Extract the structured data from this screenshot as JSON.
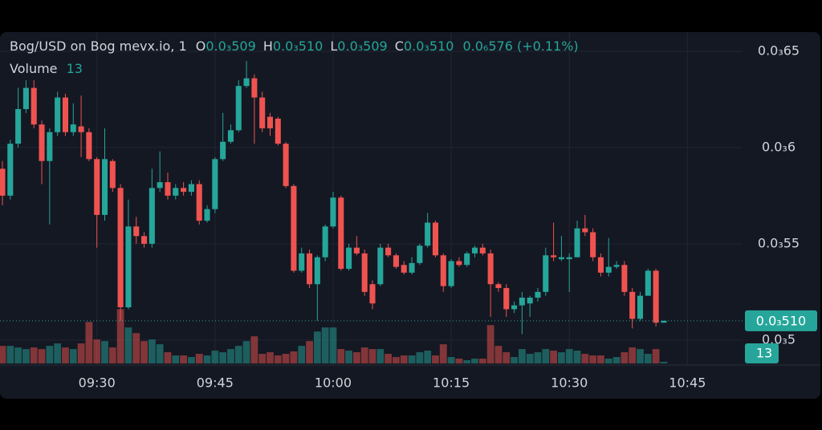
{
  "chart_data": {
    "type": "candlestick",
    "legend": {
      "title": "Bog/USD on Bog mevx.io, 1",
      "keys": [
        "O",
        "H",
        "L",
        "C"
      ],
      "labels": [
        "0.0₃509",
        "0.0₃510",
        "0.0₃509",
        "0.0₃510"
      ],
      "change": "0.0₆576 (+0.11%)"
    },
    "x": [
      "09:18",
      "09:19",
      "09:20",
      "09:21",
      "09:22",
      "09:23",
      "09:24",
      "09:25",
      "09:26",
      "09:27",
      "09:28",
      "09:29",
      "09:30",
      "09:31",
      "09:32",
      "09:33",
      "09:34",
      "09:35",
      "09:36",
      "09:37",
      "09:38",
      "09:39",
      "09:40",
      "09:41",
      "09:42",
      "09:43",
      "09:44",
      "09:45",
      "09:46",
      "09:47",
      "09:48",
      "09:49",
      "09:50",
      "09:51",
      "09:52",
      "09:53",
      "09:54",
      "09:55",
      "09:56",
      "09:57",
      "09:58",
      "09:59",
      "10:00",
      "10:01",
      "10:02",
      "10:03",
      "10:04",
      "10:05",
      "10:06",
      "10:07",
      "10:08",
      "10:09",
      "10:10",
      "10:11",
      "10:12",
      "10:13",
      "10:14",
      "10:15",
      "10:16",
      "10:17",
      "10:18",
      "10:19",
      "10:20",
      "10:21",
      "10:22",
      "10:23",
      "10:24",
      "10:25",
      "10:26",
      "10:27",
      "10:28",
      "10:29",
      "10:30",
      "10:31",
      "10:32",
      "10:33",
      "10:34",
      "10:35",
      "10:36",
      "10:37",
      "10:38",
      "10:39",
      "10:40",
      "10:41",
      "10:42"
    ],
    "series": [
      {
        "name": "Bog/USD",
        "up_color": "#26a69a",
        "down_color": "#ef5350",
        "open": [
          0.000589,
          0.000575,
          0.000602,
          0.00062,
          0.000631,
          0.000612,
          0.000593,
          0.000608,
          0.000626,
          0.000608,
          0.000611,
          0.000608,
          0.000594,
          0.000565,
          0.000593,
          0.000579,
          0.000517,
          0.000559,
          0.000554,
          0.00055,
          0.000579,
          0.000582,
          0.000575,
          0.000579,
          0.000577,
          0.000581,
          0.000562,
          0.000568,
          0.000594,
          0.000603,
          0.000609,
          0.000632,
          0.000636,
          0.000626,
          0.000616,
          0.000615,
          0.000602,
          0.00058,
          0.000536,
          0.000545,
          0.000529,
          0.000543,
          0.000559,
          0.000574,
          0.000537,
          0.000548,
          0.000545,
          0.000529,
          0.000529,
          0.000548,
          0.000544,
          0.000539,
          0.000535,
          0.00054,
          0.000549,
          0.000561,
          0.000544,
          0.000528,
          0.000541,
          0.000539,
          0.000545,
          0.000548,
          0.000545,
          0.000529,
          0.000527,
          0.000516,
          0.000518,
          0.000519,
          0.000522,
          0.000525,
          0.000544,
          0.000542,
          0.000542,
          0.000543,
          0.000558,
          0.000556,
          0.000543,
          0.000535,
          0.000538,
          0.000539,
          0.000525,
          0.000511,
          0.000523,
          0.000536,
          0.000509
        ],
        "high": [
          0.000593,
          0.000604,
          0.000631,
          0.000635,
          0.000635,
          0.000614,
          0.00061,
          0.000629,
          0.000628,
          0.000623,
          0.000627,
          0.00061,
          0.000595,
          0.00061,
          0.000594,
          0.000581,
          0.000573,
          0.000564,
          0.000556,
          0.000589,
          0.000598,
          0.000587,
          0.000581,
          0.000582,
          0.000583,
          0.000583,
          0.00057,
          0.000595,
          0.000618,
          0.000612,
          0.000635,
          0.000645,
          0.000638,
          0.000629,
          0.000618,
          0.000616,
          0.000603,
          0.000581,
          0.000548,
          0.000547,
          0.000544,
          0.00056,
          0.000577,
          0.000575,
          0.00055,
          0.000554,
          0.000547,
          0.000531,
          0.00055,
          0.00055,
          0.000545,
          0.000541,
          0.000543,
          0.00055,
          0.000566,
          0.000562,
          0.000545,
          0.000542,
          0.000543,
          0.000546,
          0.000549,
          0.00055,
          0.000547,
          0.00053,
          0.000529,
          0.00052,
          0.000525,
          0.000523,
          0.000527,
          0.000548,
          0.000561,
          0.000554,
          0.000545,
          0.000562,
          0.000565,
          0.000558,
          0.000545,
          0.000553,
          0.000541,
          0.000541,
          0.000527,
          0.000525,
          0.000537,
          0.000537,
          0.00051
        ],
        "low": [
          0.00057,
          0.000573,
          0.0006,
          0.000618,
          0.00061,
          0.000581,
          0.00056,
          0.000606,
          0.000606,
          0.000606,
          0.000595,
          0.000593,
          0.000548,
          0.000562,
          0.000577,
          0.00051,
          0.000516,
          0.00055,
          0.000548,
          0.000548,
          0.000577,
          0.000573,
          0.000573,
          0.000575,
          0.000575,
          0.00056,
          0.000561,
          0.000566,
          0.000593,
          0.000602,
          0.000608,
          0.000631,
          0.000602,
          0.000608,
          0.000606,
          0.000601,
          0.000579,
          0.000535,
          0.000535,
          0.000527,
          0.00051,
          0.000541,
          0.000558,
          0.000536,
          0.000536,
          0.000544,
          0.000523,
          0.000516,
          0.000528,
          0.000543,
          0.000537,
          0.000534,
          0.000534,
          0.000539,
          0.000548,
          0.000543,
          0.000525,
          0.000527,
          0.000538,
          0.000538,
          0.000543,
          0.000544,
          0.000512,
          0.000525,
          0.000512,
          0.000514,
          0.000503,
          0.000512,
          0.00052,
          0.000523,
          0.000541,
          0.000541,
          0.000525,
          0.000543,
          0.000554,
          0.000541,
          0.000533,
          0.000533,
          0.000537,
          0.000523,
          0.000506,
          0.00051,
          0.000523,
          0.000507,
          0.000509
        ],
        "close": [
          0.000575,
          0.000602,
          0.00062,
          0.000631,
          0.000612,
          0.000593,
          0.000608,
          0.000626,
          0.000608,
          0.000612,
          0.000608,
          0.000594,
          0.000565,
          0.000594,
          0.000579,
          0.000517,
          0.000559,
          0.000554,
          0.00055,
          0.000579,
          0.000582,
          0.000575,
          0.000579,
          0.000577,
          0.000581,
          0.000562,
          0.000568,
          0.000594,
          0.000603,
          0.000609,
          0.000632,
          0.000636,
          0.000626,
          0.00061,
          0.00061,
          0.000602,
          0.00058,
          0.000536,
          0.000545,
          0.000529,
          0.000543,
          0.000559,
          0.000574,
          0.000537,
          0.000548,
          0.000545,
          0.000525,
          0.000519,
          0.000548,
          0.000544,
          0.000538,
          0.000535,
          0.00054,
          0.000549,
          0.000561,
          0.000544,
          0.000528,
          0.000541,
          0.000539,
          0.000545,
          0.000548,
          0.000545,
          0.000529,
          0.000527,
          0.000516,
          0.000518,
          0.000522,
          0.000522,
          0.000525,
          0.000544,
          0.000543,
          0.000543,
          0.000543,
          0.000558,
          0.000556,
          0.000543,
          0.000535,
          0.000538,
          0.000539,
          0.000525,
          0.000511,
          0.000523,
          0.000536,
          0.000509,
          0.00051
        ]
      },
      {
        "name": "Volume",
        "axis": "y2",
        "up_color": "#26a69a",
        "down_color": "#ef5350",
        "values": [
          143,
          143,
          130,
          117,
          130,
          117,
          143,
          163,
          130,
          117,
          163,
          338,
          195,
          182,
          130,
          442,
          293,
          247,
          182,
          195,
          156,
          91,
          65,
          65,
          52,
          78,
          65,
          104,
          91,
          117,
          143,
          182,
          221,
          78,
          91,
          65,
          78,
          98,
          143,
          182,
          260,
          293,
          293,
          117,
          104,
          91,
          130,
          117,
          117,
          78,
          52,
          65,
          65,
          91,
          104,
          65,
          156,
          52,
          39,
          26,
          39,
          39,
          312,
          143,
          91,
          52,
          117,
          78,
          91,
          117,
          104,
          91,
          117,
          104,
          78,
          65,
          65,
          39,
          52,
          91,
          130,
          117,
          78,
          117,
          13
        ]
      }
    ],
    "xlim": [
      "09:18",
      "10:52"
    ],
    "xticks": [
      "09:30",
      "09:45",
      "10:00",
      "10:15",
      "10:30",
      "10:45"
    ],
    "ylim": [
      0.000487,
      0.00066
    ],
    "yticks": [
      {
        "value": 0.00065,
        "label": "0.0₃65"
      },
      {
        "value": 0.0006,
        "label": "0.0₃6"
      },
      {
        "value": 0.00055,
        "label": "0.0₃55"
      },
      {
        "value": 0.0005,
        "label": "0.0₃5"
      }
    ],
    "y2lim": [
      0,
      2700
    ],
    "price_label": {
      "value": 0.00051,
      "label": "0.0₃510"
    },
    "grid": true
  }
}
